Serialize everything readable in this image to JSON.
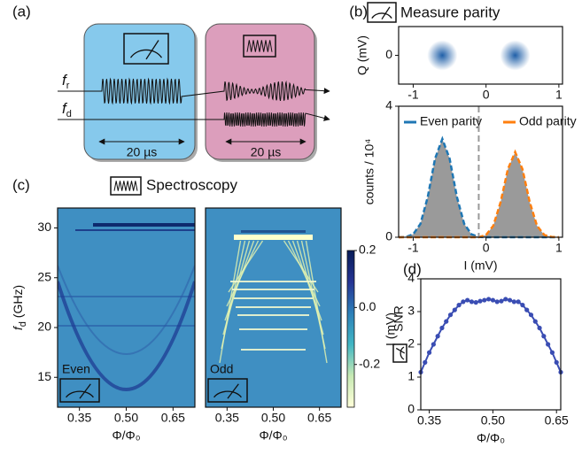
{
  "panels": [
    "(a)",
    "(b)",
    "(c)",
    "(d)"
  ],
  "schematic": {
    "readout": {
      "symbol": "f",
      "sub": "r"
    },
    "drive": {
      "symbol": "f",
      "sub": "d"
    },
    "measure_duration": "20 µs",
    "drive_duration": "20 µs"
  },
  "headings": {
    "measure": "Measure parity",
    "spectroscopy": "Spectroscopy"
  },
  "chart_data": [
    {
      "type": "scatter",
      "ylabel": "Q (mV)",
      "x": [
        -0.6,
        0.4
      ],
      "y": [
        0,
        0
      ],
      "color": "#1f5fa8",
      "xlim": [
        -1.2,
        1.05
      ],
      "xticks": [
        -1,
        0,
        1
      ],
      "ylim": [
        -0.5,
        0.5
      ],
      "yticks": [
        0
      ]
    },
    {
      "type": "area",
      "xlabel": "I (mV)",
      "ylabel": "counts / 10⁴",
      "x": [
        -1.2,
        -1.1,
        -1.0,
        -0.9,
        -0.8,
        -0.7,
        -0.6,
        -0.5,
        -0.4,
        -0.3,
        -0.2,
        -0.1,
        0,
        0.1,
        0.2,
        0.3,
        0.4,
        0.5,
        0.6,
        0.7,
        0.8,
        0.9,
        1.0
      ],
      "series": [
        {
          "name": "Even parity",
          "color": "#1f77b4",
          "values": [
            0,
            0.01,
            0.09,
            0.41,
            1.23,
            2.4,
            3,
            2.4,
            1.23,
            0.41,
            0.09,
            0.01,
            0,
            0,
            0,
            0,
            0,
            0,
            0,
            0,
            0,
            0,
            0
          ]
        },
        {
          "name": "Odd parity",
          "color": "#ff7f0e",
          "values": [
            0,
            0,
            0,
            0,
            0,
            0,
            0,
            0,
            0,
            0,
            0,
            0,
            0.07,
            0.35,
            1.07,
            2.08,
            2.6,
            2.08,
            1.07,
            0.35,
            0.07,
            0.01,
            0
          ]
        }
      ],
      "fill": "#9a9a9a",
      "threshold": -0.1,
      "xlim": [
        -1.2,
        1.05
      ],
      "xticks": [
        -1,
        0,
        1
      ],
      "ylim": [
        0,
        4
      ],
      "yticks": [
        0,
        4
      ]
    },
    {
      "type": "heatmap",
      "label": "Even",
      "xlabel": "Φ/Φ₀",
      "ylabel": {
        "symbol": "f",
        "sub": "d",
        "unit": " (GHz)"
      },
      "xlim": [
        0.28,
        0.72
      ],
      "xticks": [
        0.35,
        {
          "value": 0.5,
          "label": "0.50"
        },
        0.65
      ],
      "ylim": [
        12,
        32
      ],
      "yticks": [
        15,
        20,
        25,
        30
      ]
    },
    {
      "type": "heatmap",
      "label": "Odd",
      "xlabel": "Φ/Φ₀",
      "xlim": [
        0.28,
        0.72
      ],
      "xticks": [
        0.35,
        {
          "value": 0.5,
          "label": "0.50"
        },
        0.65
      ],
      "ylim": [
        12,
        32
      ],
      "colorbar": {
        "label": "I (mV)",
        "zlim": [
          -0.35,
          0.2
        ],
        "zticks": [
          0.2,
          {
            "value": 0,
            "label": "0.0"
          },
          -0.2
        ]
      }
    },
    {
      "type": "line",
      "ylabel": "SNR",
      "xlabel": "Φ/Φ₀",
      "color": "#3a4db3",
      "x": [
        0.33,
        0.34,
        0.35,
        0.36,
        0.37,
        0.38,
        0.39,
        0.4,
        0.41,
        0.42,
        0.43,
        0.44,
        0.45,
        0.46,
        0.47,
        0.48,
        0.49,
        0.5,
        0.51,
        0.52,
        0.53,
        0.54,
        0.55,
        0.56,
        0.57,
        0.58,
        0.59,
        0.6,
        0.61,
        0.62,
        0.63,
        0.64,
        0.65,
        0.66
      ],
      "values": [
        1.15,
        1.45,
        1.75,
        2.0,
        2.25,
        2.5,
        2.7,
        2.9,
        3.05,
        3.2,
        3.3,
        3.35,
        3.3,
        3.28,
        3.32,
        3.35,
        3.38,
        3.35,
        3.3,
        3.32,
        3.38,
        3.35,
        3.3,
        3.3,
        3.2,
        3.05,
        2.9,
        2.7,
        2.5,
        2.25,
        2.0,
        1.75,
        1.45,
        1.15
      ],
      "xlim": [
        0.33,
        0.66
      ],
      "xticks": [
        0.35,
        {
          "value": 0.5,
          "label": "0.50"
        },
        0.65
      ],
      "ylim": [
        0,
        4
      ],
      "yticks": [
        0,
        1,
        2,
        3,
        4
      ]
    }
  ]
}
